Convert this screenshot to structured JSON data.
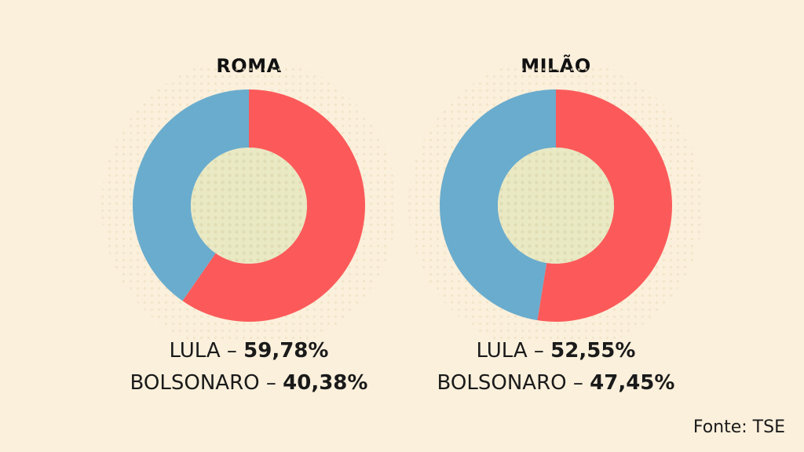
{
  "colors": {
    "background": "#fbf0dc",
    "lula": "#fc5a5a",
    "bolsonaro": "#6aaccd",
    "center": "#e9e9c4"
  },
  "chart_data": [
    {
      "type": "pie",
      "title": "ROMA",
      "categories": [
        "LULA",
        "BOLSONARO"
      ],
      "values": [
        59.78,
        40.38
      ],
      "labels": {
        "lula_name": "LULA",
        "lula_value": "59,78%",
        "bolsonaro_name": "BOLSONARO",
        "bolsonaro_value": "40,38%"
      }
    },
    {
      "type": "pie",
      "title": "MILÃO",
      "categories": [
        "LULA",
        "BOLSONARO"
      ],
      "values": [
        52.55,
        47.45
      ],
      "labels": {
        "lula_name": "LULA",
        "lula_value": "52,55%",
        "bolsonaro_name": "BOLSONARO",
        "bolsonaro_value": "47,45%"
      }
    }
  ],
  "separator": "–",
  "source": "Fonte: TSE"
}
